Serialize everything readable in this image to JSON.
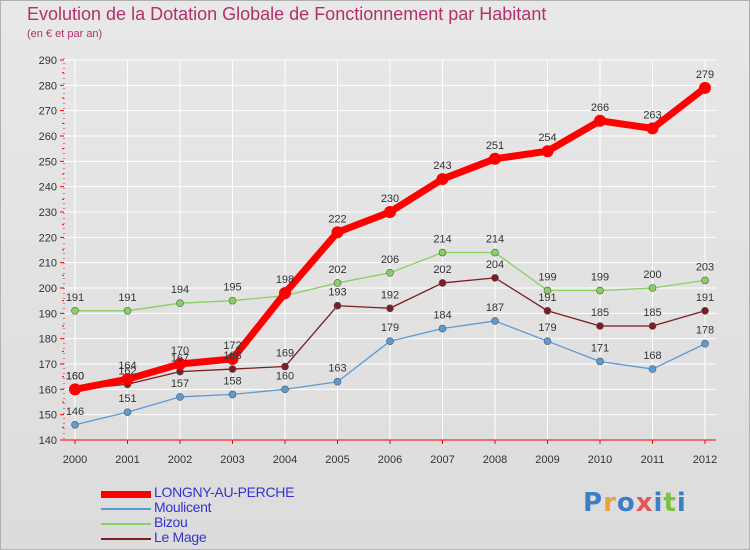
{
  "title": "Evolution de la Dotation Globale de Fonctionnement par Habitant",
  "subtitle": "(en € et par an)",
  "logo": {
    "text": "Proxiti",
    "colors": [
      "#3d7ec9",
      "#e8a33a",
      "#3d7ec9",
      "#e05858",
      "#3d7ec9",
      "#7cc242",
      "#3d7ec9"
    ]
  },
  "colors": {
    "title": "#b5306a",
    "axis": "#ff0000",
    "grid": "#ffffff",
    "legend_text": "#3333cc"
  },
  "chart_data": {
    "type": "line",
    "title": "Evolution de la Dotation Globale de Fonctionnement par Habitant",
    "subtitle": "(en € et par an)",
    "xlabel": "",
    "ylabel": "",
    "ylim": [
      140,
      290
    ],
    "yticks": [
      140,
      150,
      160,
      170,
      180,
      190,
      200,
      210,
      220,
      230,
      240,
      250,
      260,
      270,
      280,
      290
    ],
    "grid": true,
    "legend_position": "bottom-left",
    "categories": [
      "2000",
      "2001",
      "2002",
      "2003",
      "2004",
      "2005",
      "2006",
      "2007",
      "2008",
      "2009",
      "2010",
      "2011",
      "2012"
    ],
    "series": [
      {
        "name": "Bizou",
        "color": "#88d060",
        "values": [
          191,
          191,
          194,
          195,
          197,
          202,
          206,
          214,
          214,
          199,
          199,
          200,
          203
        ],
        "labels": [
          "191",
          "191",
          "194",
          "195",
          "",
          "202",
          "206",
          "214",
          "214",
          "199",
          "199",
          "200",
          "203"
        ]
      },
      {
        "name": "Le Mage",
        "color": "#7b1d22",
        "values": [
          160,
          162,
          167,
          168,
          169,
          193,
          192,
          202,
          204,
          191,
          185,
          185,
          191
        ],
        "labels": [
          "160",
          "162",
          "167",
          "168",
          "169",
          "193",
          "192",
          "202",
          "204",
          "191",
          "185",
          "185",
          "191"
        ]
      },
      {
        "name": "Moulicent",
        "color": "#5c9ad4",
        "values": [
          146,
          151,
          157,
          158,
          160,
          163,
          179,
          184,
          187,
          179,
          171,
          168,
          178
        ],
        "labels": [
          "146",
          "151",
          "157",
          "158",
          "160",
          "163",
          "179",
          "184",
          "187",
          "179",
          "171",
          "168",
          "178"
        ]
      },
      {
        "name": "LONGNY-AU-PERCHE",
        "color": "#ff0000",
        "values": [
          160,
          164,
          170,
          172,
          198,
          222,
          230,
          243,
          251,
          254,
          266,
          263,
          279
        ],
        "labels": [
          "160",
          "164",
          "170",
          "172",
          "198",
          "222",
          "230",
          "243",
          "251",
          "254",
          "266",
          "263",
          "279"
        ]
      }
    ],
    "legend": [
      {
        "name": "LONGNY-AU-PERCHE",
        "color": "#ff0000",
        "weight": "thick"
      },
      {
        "name": "Moulicent",
        "color": "#5c9ad4",
        "weight": "thin"
      },
      {
        "name": "Bizou",
        "color": "#88d060",
        "weight": "thin"
      },
      {
        "name": "Le Mage",
        "color": "#7b1d22",
        "weight": "thin"
      }
    ]
  }
}
